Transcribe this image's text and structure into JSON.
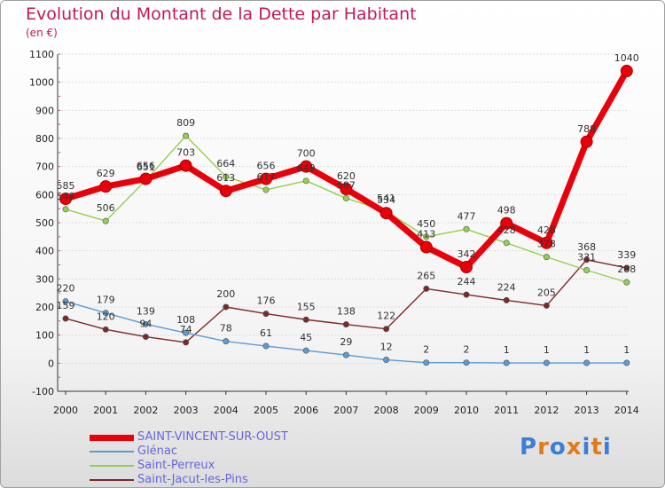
{
  "chart_data": {
    "type": "line",
    "title": "Evolution du Montant de la Dette par Habitant",
    "subtitle": "(en €)",
    "categories": [
      "2000",
      "2001",
      "2002",
      "2003",
      "2004",
      "2005",
      "2006",
      "2007",
      "2008",
      "2009",
      "2010",
      "2011",
      "2012",
      "2013",
      "2014"
    ],
    "ylim": [
      -100,
      1100
    ],
    "yticks": [
      -100,
      0,
      100,
      200,
      300,
      400,
      500,
      600,
      700,
      800,
      900,
      1000,
      1100
    ],
    "series": [
      {
        "name": "SAINT-VINCENT-SUR-OUST",
        "color": "#e8000b",
        "values": [
          585,
          629,
          656,
          703,
          613,
          656,
          700,
          620,
          534,
          413,
          342,
          498,
          428,
          788,
          1040
        ]
      },
      {
        "name": "Glénac",
        "color": "#5b9bd5",
        "values": [
          220,
          179,
          139,
          108,
          78,
          61,
          45,
          29,
          12,
          2,
          2,
          1,
          1,
          1,
          1
        ]
      },
      {
        "name": "Saint-Perreux",
        "color": "#92d050",
        "values": [
          548,
          506,
          651,
          809,
          664,
          617,
          649,
          587,
          541,
          450,
          477,
          428,
          378,
          331,
          288
        ]
      },
      {
        "name": "Saint-Jacut-les-Pins",
        "color": "#7b2a2a",
        "values": [
          159,
          120,
          94,
          74,
          200,
          176,
          155,
          138,
          122,
          265,
          244,
          224,
          205,
          368,
          339
        ]
      }
    ]
  },
  "legend": {
    "items": [
      "SAINT-VINCENT-SUR-OUST",
      "Glénac",
      "Saint-Perreux",
      "Saint-Jacut-les-Pins"
    ]
  },
  "logo": {
    "text": "Proxiti"
  }
}
